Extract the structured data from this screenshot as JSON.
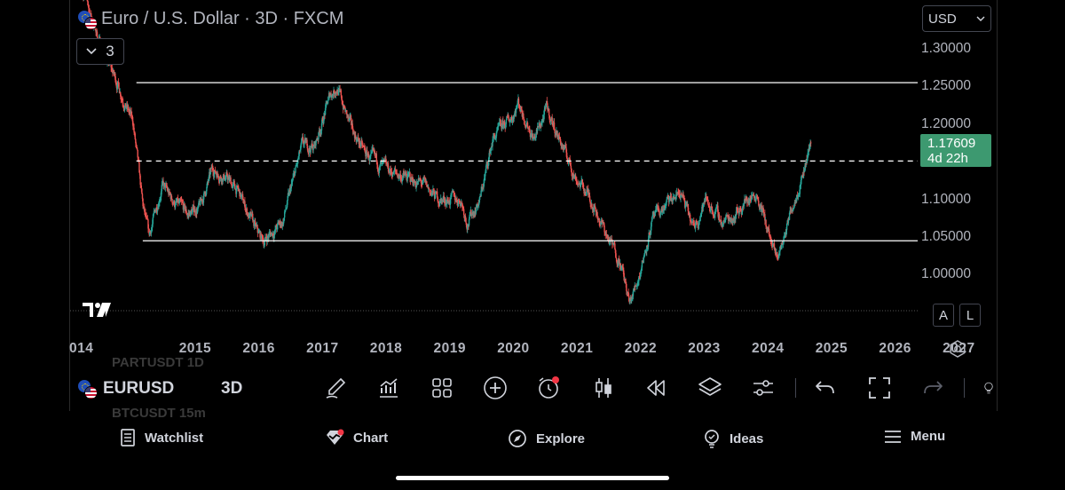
{
  "header": {
    "title": "Euro / U.S. Dollar · 3D · FXCM",
    "indicators_count": "3",
    "currency": "USD"
  },
  "chart_data": {
    "type": "candlestick",
    "title": "Euro / U.S. Dollar · 3D · FXCM",
    "y_ticks": [
      "1.30000",
      "1.25000",
      "1.20000",
      "1.10000",
      "1.05000",
      "1.00000"
    ],
    "x_ticks": [
      "014",
      "2015",
      "2016",
      "2017",
      "2018",
      "2019",
      "2020",
      "2021",
      "2022",
      "2023",
      "2024",
      "2025",
      "2026",
      "2027"
    ],
    "ylim": [
      0.955,
      1.33
    ],
    "last_price": "1.17609",
    "countdown": "4d 22h",
    "horizontal_lines": [
      {
        "y": 1.255,
        "from": 2015.0,
        "style": "solid"
      },
      {
        "y": 1.151,
        "from": 2015.0,
        "style": "dashed"
      },
      {
        "y": 1.045,
        "from": 2015.1,
        "style": "solid"
      }
    ],
    "close_path": [
      [
        2014.15,
        1.38
      ],
      [
        2014.45,
        1.3
      ],
      [
        2014.7,
        1.255
      ],
      [
        2014.95,
        1.2
      ],
      [
        2015.1,
        1.09
      ],
      [
        2015.2,
        1.05
      ],
      [
        2015.4,
        1.12
      ],
      [
        2015.55,
        1.1
      ],
      [
        2015.8,
        1.08
      ],
      [
        2016.0,
        1.09
      ],
      [
        2016.2,
        1.14
      ],
      [
        2016.4,
        1.13
      ],
      [
        2016.6,
        1.11
      ],
      [
        2016.9,
        1.055
      ],
      [
        2017.0,
        1.045
      ],
      [
        2017.3,
        1.07
      ],
      [
        2017.6,
        1.17
      ],
      [
        2017.8,
        1.17
      ],
      [
        2018.05,
        1.24
      ],
      [
        2018.15,
        1.25
      ],
      [
        2018.35,
        1.2
      ],
      [
        2018.6,
        1.16
      ],
      [
        2018.9,
        1.14
      ],
      [
        2019.2,
        1.13
      ],
      [
        2019.5,
        1.12
      ],
      [
        2019.75,
        1.1
      ],
      [
        2020.1,
        1.1
      ],
      [
        2020.2,
        1.07
      ],
      [
        2020.4,
        1.1
      ],
      [
        2020.6,
        1.18
      ],
      [
        2020.9,
        1.21
      ],
      [
        2021.0,
        1.23
      ],
      [
        2021.25,
        1.18
      ],
      [
        2021.45,
        1.22
      ],
      [
        2021.7,
        1.17
      ],
      [
        2021.9,
        1.13
      ],
      [
        2022.15,
        1.1
      ],
      [
        2022.4,
        1.05
      ],
      [
        2022.6,
        1.02
      ],
      [
        2022.75,
        0.96
      ],
      [
        2022.9,
        1.0
      ],
      [
        2023.1,
        1.07
      ],
      [
        2023.3,
        1.09
      ],
      [
        2023.55,
        1.11
      ],
      [
        2023.75,
        1.06
      ],
      [
        2023.95,
        1.1
      ],
      [
        2024.2,
        1.07
      ],
      [
        2024.4,
        1.08
      ],
      [
        2024.6,
        1.1
      ],
      [
        2024.75,
        1.11
      ],
      [
        2024.95,
        1.05
      ],
      [
        2025.05,
        1.02
      ],
      [
        2025.15,
        1.04
      ],
      [
        2025.3,
        1.09
      ],
      [
        2025.45,
        1.13
      ],
      [
        2025.55,
        1.16
      ],
      [
        2025.6,
        1.176
      ]
    ]
  },
  "scale_buttons": {
    "auto": "A",
    "log": "L"
  },
  "ghost_rows": [
    "PARTUSDT  1D",
    "BTCUSDT  15m"
  ],
  "toolbar": {
    "symbol": "EURUSD",
    "interval": "3D",
    "tools": [
      "draw-brush-icon",
      "indicators-icon",
      "layouts-icon",
      "add-icon",
      "alert-icon",
      "candle-type-icon",
      "replay-icon",
      "layers-icon",
      "settings-sliders-icon",
      "undo-icon",
      "fullscreen-icon",
      "redo-icon",
      "idea-lightbulb-icon"
    ]
  },
  "bottom_nav": [
    {
      "label": "Watchlist",
      "icon": "watchlist-icon"
    },
    {
      "label": "Chart",
      "icon": "chart-icon"
    },
    {
      "label": "Explore",
      "icon": "compass-icon"
    },
    {
      "label": "Ideas",
      "icon": "ideas-icon"
    },
    {
      "label": "Menu",
      "icon": "menu-icon"
    }
  ],
  "colors": {
    "up": "#26a69a",
    "down": "#ef5350",
    "last_price_bg": "#3d9970",
    "background": "#000000"
  }
}
